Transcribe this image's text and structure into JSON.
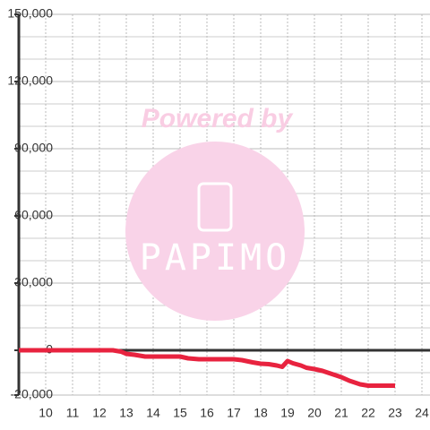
{
  "chart_data": {
    "type": "line",
    "watermark": {
      "top": "Powered by",
      "brand": "PAPIMO"
    },
    "x": [
      9,
      12.5,
      12.8,
      13,
      13.3,
      13.7,
      14,
      15,
      15.3,
      15.7,
      16,
      17,
      17.3,
      17.7,
      18,
      18.3,
      18.6,
      18.8,
      19,
      19.2,
      19.5,
      19.7,
      20,
      20.3,
      20.5,
      20.8,
      21,
      21.3,
      21.7,
      22,
      23
    ],
    "series": [
      {
        "color": "#e8233f",
        "values": [
          0,
          0,
          -600,
          -1600,
          -2000,
          -2800,
          -2800,
          -2800,
          -3600,
          -4000,
          -4000,
          -4000,
          -4400,
          -5400,
          -6000,
          -6200,
          -6800,
          -7400,
          -4800,
          -5800,
          -6800,
          -7800,
          -8400,
          -9200,
          -10000,
          -11200,
          -12000,
          -13600,
          -15200,
          -15800,
          -15800
        ]
      }
    ],
    "xlim": [
      9,
      24.3
    ],
    "ylim": [
      -20000,
      150000
    ],
    "xticks": [
      10,
      11,
      12,
      13,
      14,
      15,
      16,
      17,
      18,
      19,
      20,
      21,
      22,
      23,
      24
    ],
    "yticks": [
      {
        "value": -20000,
        "label": "-20,000"
      },
      0,
      {
        "value": 30000,
        "label": "30,000"
      },
      {
        "value": 60000,
        "label": "60,000"
      },
      {
        "value": 90000,
        "label": "90,000"
      },
      {
        "value": 120000,
        "label": "120,000"
      },
      {
        "value": 150000,
        "label": "150,000"
      }
    ],
    "ygrid": [
      -10000,
      10000,
      20000,
      40000,
      50000,
      70000,
      80000,
      100000,
      110000,
      130000,
      140000
    ],
    "grid": true
  }
}
